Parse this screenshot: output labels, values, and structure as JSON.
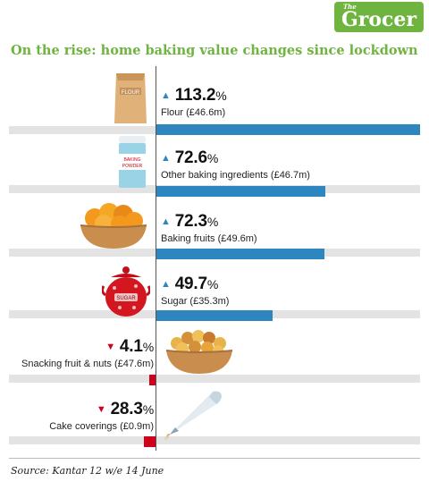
{
  "brand": {
    "small": "The",
    "name": "Grocer"
  },
  "title": "On the rise: home baking value changes since lockdown",
  "source": "Source: Kantar 12 w/e 14 June",
  "colors": {
    "increase": "#2e86c1",
    "decrease": "#d0021b",
    "title": "#6fb43f",
    "band": "#e3e3e3"
  },
  "items": [
    {
      "pct": "113.2",
      "sign": "%",
      "direction": "up",
      "desc": "Flour (£46.6m)",
      "icon": "flour-bag-icon"
    },
    {
      "pct": "72.6",
      "sign": "%",
      "direction": "up",
      "desc": "Other baking ingredients (£46.7m)",
      "icon": "baking-powder-icon"
    },
    {
      "pct": "72.3",
      "sign": "%",
      "direction": "up",
      "desc": "Baking fruits (£49.6m)",
      "icon": "apricot-bowl-icon"
    },
    {
      "pct": "49.7",
      "sign": "%",
      "direction": "up",
      "desc": "Sugar (£35.3m)",
      "icon": "sugar-bowl-icon"
    },
    {
      "pct": "4.1",
      "sign": "%",
      "direction": "down",
      "desc": "Snacking fruit & nuts (£47.6m)",
      "icon": "nut-bowl-icon"
    },
    {
      "pct": "28.3",
      "sign": "%",
      "direction": "down",
      "desc": "Cake coverings (£0.9m)",
      "icon": "piping-bag-icon"
    }
  ],
  "chart_data": {
    "type": "bar",
    "title": "On the rise: home baking value changes since lockdown",
    "categories": [
      "Flour",
      "Other baking ingredients",
      "Baking fruits",
      "Sugar",
      "Snacking fruit & nuts",
      "Cake coverings"
    ],
    "values": [
      113.2,
      72.6,
      72.3,
      49.7,
      -4.1,
      -28.3
    ],
    "sales_value": [
      "£46.6m",
      "£46.7m",
      "£49.6m",
      "£35.3m",
      "£47.6m",
      "£0.9m"
    ],
    "unit": "%",
    "orientation": "horizontal",
    "xlim": [
      -28.3,
      113.2
    ],
    "grid": false,
    "legend": "none"
  }
}
